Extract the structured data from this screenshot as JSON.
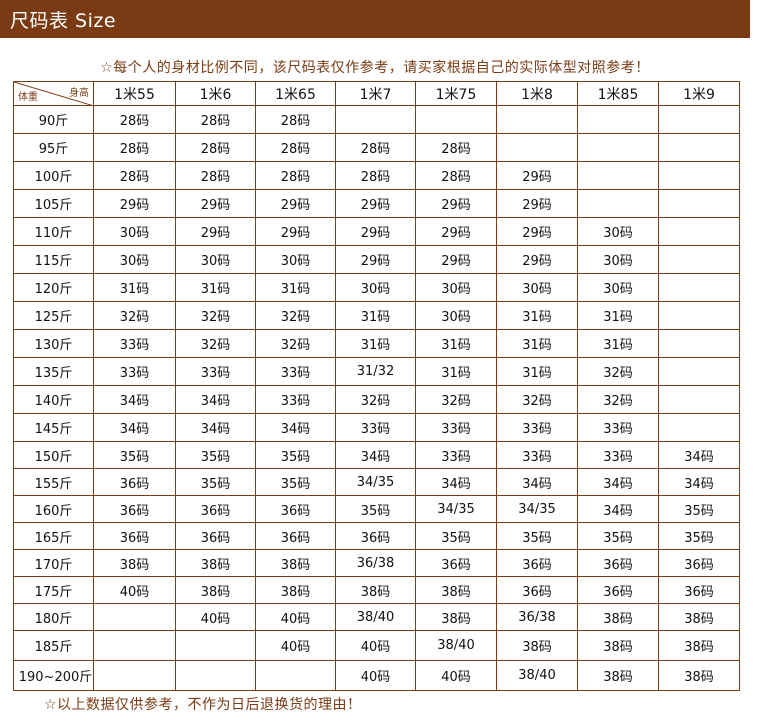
{
  "header": {
    "title": "尺码表  Size"
  },
  "notes": {
    "top": "☆每个人的身材比例不同，该尺码表仅作参考，请买家根据自己的实际体型对照参考！",
    "bottom": "☆以上数据仅供参考，不作为日后退换货的理由！"
  },
  "table": {
    "corner_height_label": "身高",
    "corner_weight_label": "体重",
    "heights": [
      "1米55",
      "1米6",
      "1米65",
      "1米7",
      "1米75",
      "1米8",
      "1米85",
      "1米9"
    ],
    "rows": [
      {
        "weight": "90斤",
        "sizes": [
          "28码",
          "28码",
          "28码",
          "",
          "",
          "",
          "",
          ""
        ]
      },
      {
        "weight": "95斤",
        "sizes": [
          "28码",
          "28码",
          "28码",
          "28码",
          "28码",
          "",
          "",
          ""
        ]
      },
      {
        "weight": "100斤",
        "sizes": [
          "28码",
          "28码",
          "28码",
          "28码",
          "28码",
          "29码",
          "",
          ""
        ]
      },
      {
        "weight": "105斤",
        "sizes": [
          "29码",
          "29码",
          "29码",
          "29码",
          "29码",
          "29码",
          "",
          ""
        ]
      },
      {
        "weight": "110斤",
        "sizes": [
          "30码",
          "29码",
          "29码",
          "29码",
          "29码",
          "29码",
          "30码",
          ""
        ]
      },
      {
        "weight": "115斤",
        "sizes": [
          "30码",
          "30码",
          "30码",
          "29码",
          "29码",
          "29码",
          "30码",
          ""
        ]
      },
      {
        "weight": "120斤",
        "sizes": [
          "31码",
          "31码",
          "31码",
          "30码",
          "30码",
          "30码",
          "30码",
          ""
        ]
      },
      {
        "weight": "125斤",
        "sizes": [
          "32码",
          "32码",
          "32码",
          "31码",
          "30码",
          "31码",
          "31码",
          ""
        ]
      },
      {
        "weight": "130斤",
        "sizes": [
          "33码",
          "32码",
          "32码",
          "31码",
          "31码",
          "31码",
          "31码",
          ""
        ]
      },
      {
        "weight": "135斤",
        "sizes": [
          "33码",
          "33码",
          "33码",
          "31/32",
          "31码",
          "31码",
          "32码",
          ""
        ]
      },
      {
        "weight": "140斤",
        "sizes": [
          "34码",
          "34码",
          "33码",
          "32码",
          "32码",
          "32码",
          "32码",
          ""
        ]
      },
      {
        "weight": "145斤",
        "sizes": [
          "34码",
          "34码",
          "34码",
          "33码",
          "33码",
          "33码",
          "33码",
          ""
        ]
      },
      {
        "weight": "150斤",
        "sizes": [
          "35码",
          "35码",
          "35码",
          "34码",
          "33码",
          "33码",
          "33码",
          "34码"
        ]
      },
      {
        "weight": "155斤",
        "sizes": [
          "36码",
          "35码",
          "35码",
          "34/35",
          "34码",
          "34码",
          "34码",
          "34码"
        ]
      },
      {
        "weight": "160斤",
        "sizes": [
          "36码",
          "36码",
          "36码",
          "35码",
          "34/35",
          "34/35",
          "34码",
          "35码"
        ]
      },
      {
        "weight": "165斤",
        "sizes": [
          "36码",
          "36码",
          "36码",
          "36码",
          "35码",
          "35码",
          "35码",
          "35码"
        ]
      },
      {
        "weight": "170斤",
        "sizes": [
          "38码",
          "38码",
          "38码",
          "36/38",
          "36码",
          "36码",
          "36码",
          "36码"
        ]
      },
      {
        "weight": "175斤",
        "sizes": [
          "40码",
          "38码",
          "38码",
          "38码",
          "38码",
          "36码",
          "36码",
          "36码"
        ]
      },
      {
        "weight": "180斤",
        "sizes": [
          "",
          "40码",
          "40码",
          "38/40",
          "38码",
          "36/38",
          "38码",
          "38码"
        ]
      },
      {
        "weight": "185斤",
        "sizes": [
          "",
          "",
          "40码",
          "40码",
          "38/40",
          "38码",
          "38码",
          "38码"
        ]
      },
      {
        "weight": "190~200斤",
        "sizes": [
          "",
          "",
          "",
          "40码",
          "40码",
          "38/40",
          "38码",
          "38码"
        ]
      }
    ]
  }
}
